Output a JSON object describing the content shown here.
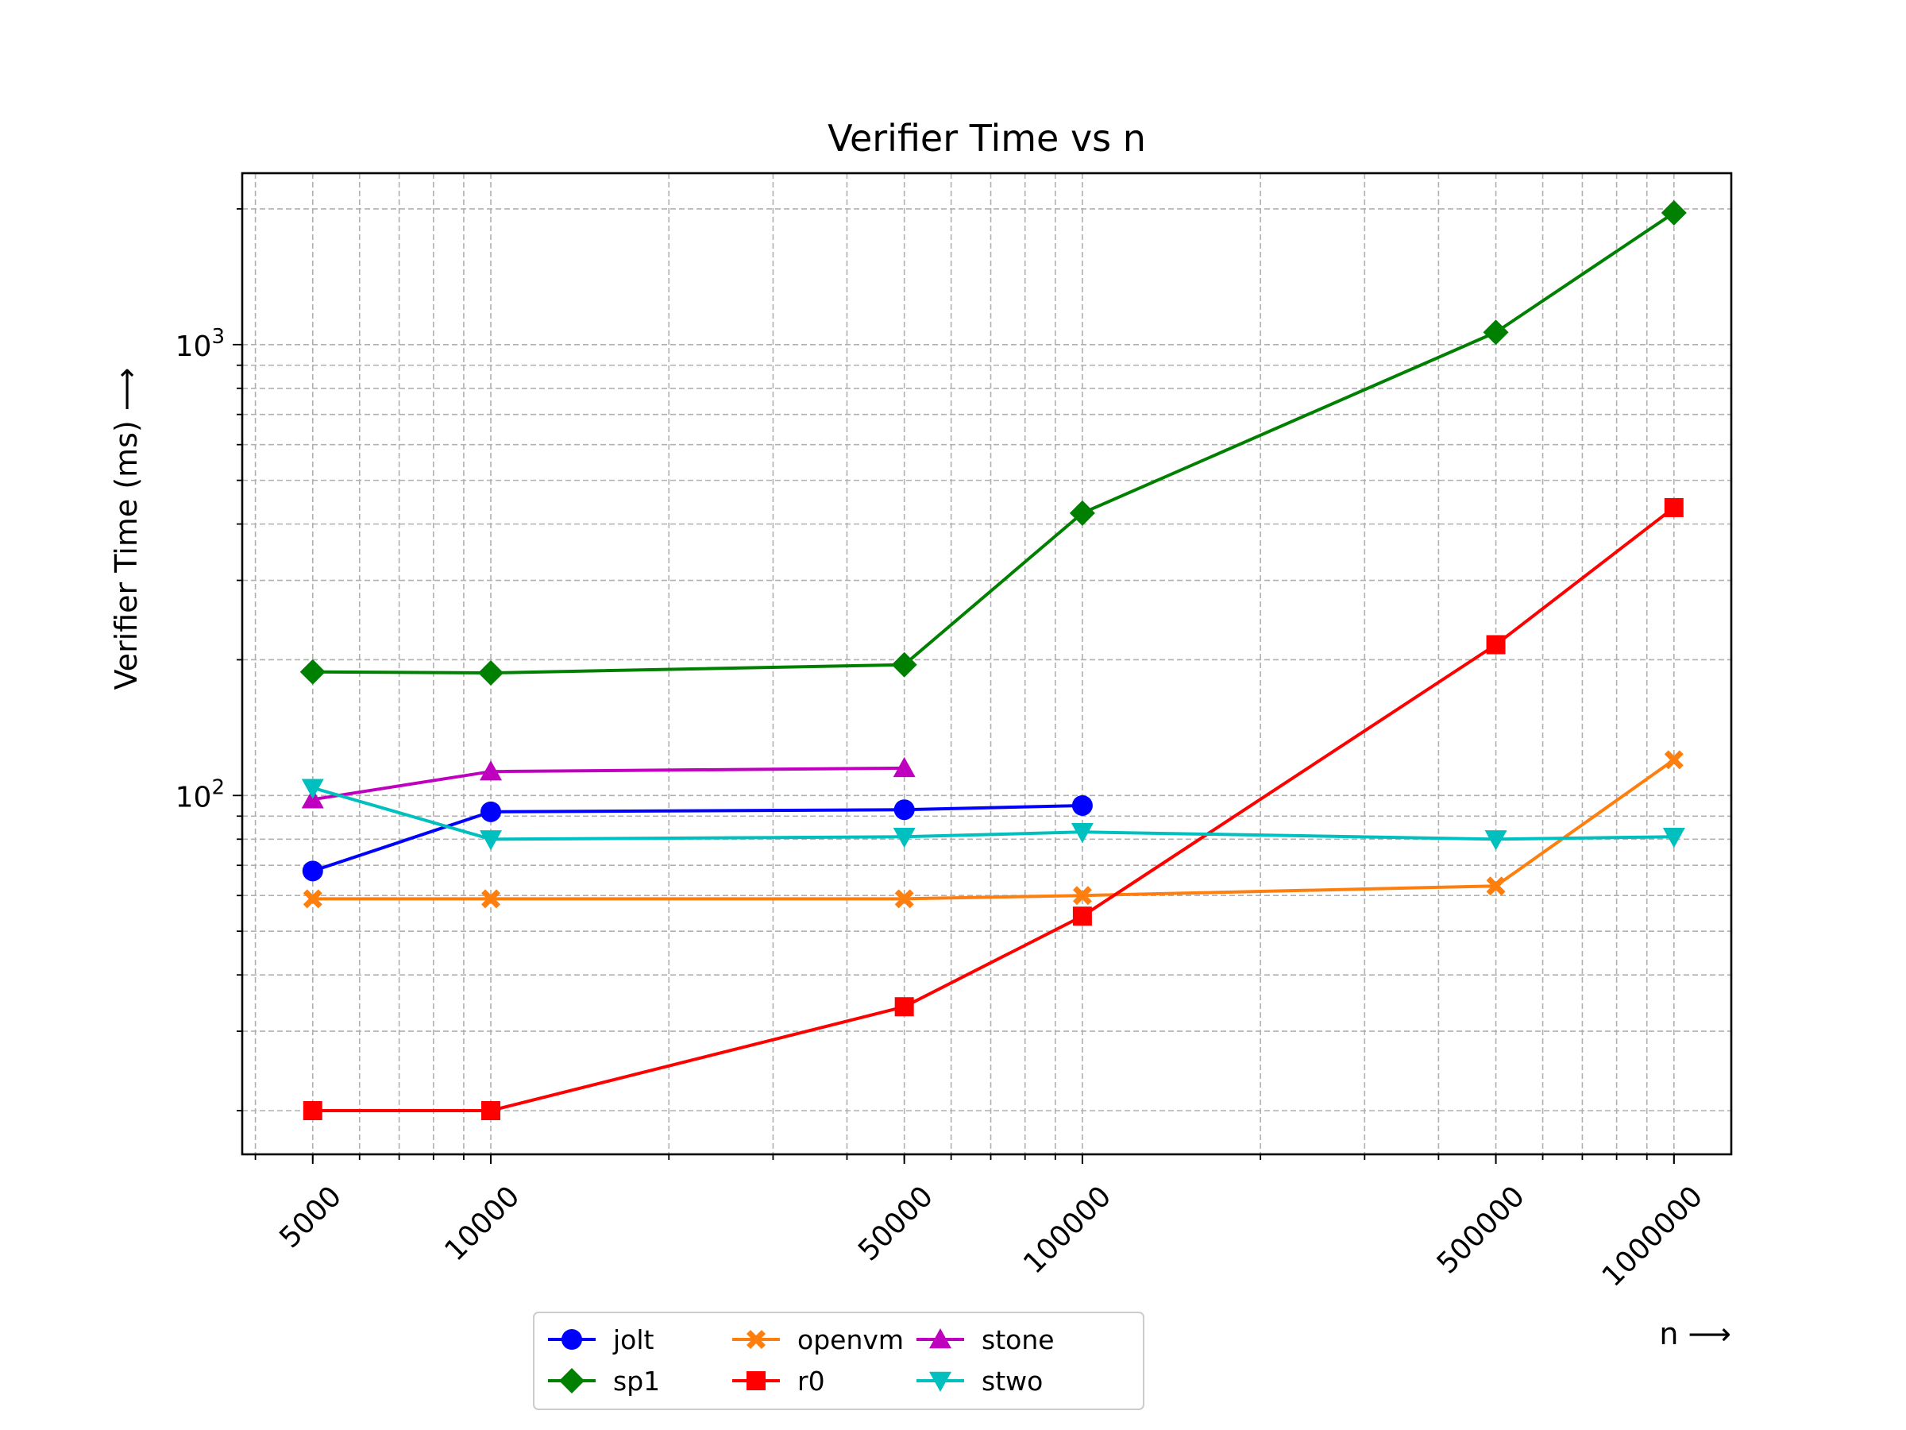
{
  "chart_data": {
    "type": "line",
    "title": "Verifier Time vs n",
    "xlabel": "n ⟶",
    "ylabel": "Verifier Time (ms) ⟶",
    "xscale": "log",
    "yscale": "log",
    "x": [
      5000,
      10000,
      50000,
      100000,
      500000,
      1000000
    ],
    "x_tick_labels": [
      "5000",
      "10000",
      "50000",
      "100000",
      "500000",
      "1000000"
    ],
    "xlim": [
      3800,
      1250000
    ],
    "ylim": [
      16,
      2400
    ],
    "y_tick_labels": [
      {
        "value": 100,
        "base": "10",
        "exp": "2"
      },
      {
        "value": 1000,
        "base": "10",
        "exp": "3"
      }
    ],
    "grid": "major and minor, dashed",
    "legend_position": "below plot, 3 columns",
    "series": [
      {
        "name": "jolt",
        "color": "#0000ff",
        "marker": "circle",
        "x": [
          5000,
          10000,
          50000,
          100000
        ],
        "values": [
          68,
          92,
          93,
          95
        ]
      },
      {
        "name": "sp1",
        "color": "#008000",
        "marker": "diamond",
        "x": [
          5000,
          10000,
          50000,
          100000,
          500000,
          1000000
        ],
        "values": [
          188,
          187,
          195,
          423,
          1065,
          1960
        ]
      },
      {
        "name": "openvm",
        "color": "#ff7f0e",
        "marker": "x-filled",
        "x": [
          5000,
          10000,
          50000,
          100000,
          500000,
          1000000
        ],
        "values": [
          59,
          59,
          59,
          60,
          63,
          120
        ]
      },
      {
        "name": "r0",
        "color": "#ff0000",
        "marker": "square",
        "x": [
          5000,
          10000,
          50000,
          100000,
          500000,
          1000000
        ],
        "values": [
          20,
          20,
          34,
          54,
          216,
          435
        ]
      },
      {
        "name": "stone",
        "color": "#bf00bf",
        "marker": "triangle-up",
        "x": [
          5000,
          10000,
          50000
        ],
        "values": [
          98,
          113,
          115
        ]
      },
      {
        "name": "stwo",
        "color": "#00bfbf",
        "marker": "triangle-down",
        "x": [
          5000,
          10000,
          50000,
          100000,
          500000,
          1000000
        ],
        "values": [
          104,
          80,
          81,
          83,
          80,
          81
        ]
      }
    ]
  }
}
